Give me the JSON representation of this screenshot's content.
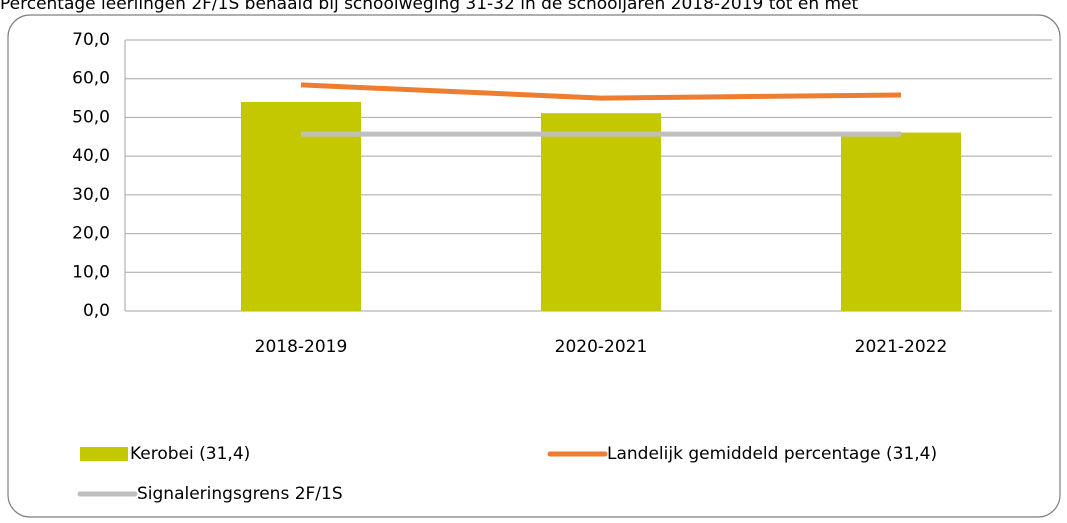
{
  "chart_data": {
    "type": "bar-line",
    "title": "Percentage leerlingen 2F/1S behaald bij schoolweging 31-32 in de schooljaren 2018-2019 tot en met",
    "categories": [
      "2018-2019",
      "2020-2021",
      "2021-2022"
    ],
    "series": [
      {
        "name": "Kerobei (31,4)",
        "type": "bar",
        "color": "#c4c800",
        "values": [
          54.0,
          51.1,
          46.1
        ]
      },
      {
        "name": "Landelijk gemiddeld percentage (31,4)",
        "type": "line",
        "color": "#ed7d31",
        "values": [
          58.4,
          55.0,
          55.8
        ]
      },
      {
        "name": "Signaleringsgrens 2F/1S",
        "type": "line",
        "color": "#bfbfbf",
        "values": [
          45.7,
          45.7,
          45.7
        ]
      }
    ],
    "ylim": [
      0,
      70
    ],
    "yticks": [
      {
        "value": 0,
        "label": "0,0"
      },
      {
        "value": 10,
        "label": "10,0"
      },
      {
        "value": 20,
        "label": "20,0"
      },
      {
        "value": 30,
        "label": "30,0"
      },
      {
        "value": 40,
        "label": "40,0"
      },
      {
        "value": 50,
        "label": "50,0"
      },
      {
        "value": 60,
        "label": "60,0"
      },
      {
        "value": 70,
        "label": "70,0"
      }
    ],
    "grid": true,
    "legend": "bottom"
  }
}
